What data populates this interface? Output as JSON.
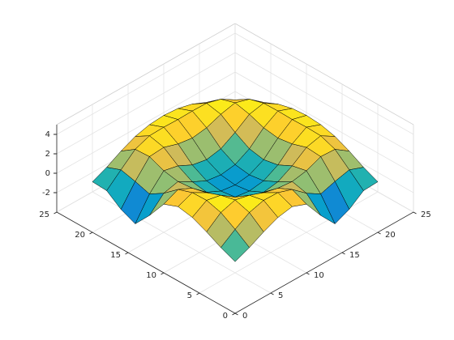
{
  "chart_data": {
    "type": "surface",
    "x": [
      1,
      3,
      5,
      7,
      9,
      11,
      13,
      15,
      17,
      19,
      21
    ],
    "y": [
      1,
      3,
      5,
      7,
      9,
      11,
      13,
      15,
      17,
      19,
      21
    ],
    "z": [
      [
        0.48,
        1.1,
        1.88,
        2.53,
        2.81,
        2.23,
        0.24,
        -1.46,
        -0.8,
        0.29,
        0.37
      ],
      [
        1.1,
        2.14,
        3.04,
        3.46,
        3.42,
        2.91,
        1.69,
        0.78,
        1.24,
        1.6,
        1.03
      ],
      [
        1.88,
        3.04,
        3.5,
        3.15,
        2.58,
        2.21,
        2.06,
        2.34,
        2.96,
        2.88,
        1.86
      ],
      [
        2.54,
        3.46,
        3.15,
        2.12,
        1.27,
        0.96,
        1.2,
        2.01,
        3.08,
        3.44,
        2.54
      ],
      [
        2.81,
        3.42,
        2.58,
        1.27,
        0.47,
        0.25,
        0.47,
        1.27,
        2.6,
        3.49,
        2.92
      ],
      [
        2.23,
        2.91,
        2.21,
        0.96,
        0.25,
        0.04,
        0.25,
        0.98,
        2.37,
        3.45,
        3.04
      ],
      [
        0.24,
        1.69,
        2.06,
        1.2,
        0.47,
        0.25,
        0.47,
        1.27,
        2.6,
        3.49,
        2.92
      ],
      [
        -1.46,
        0.78,
        2.34,
        2.01,
        1.27,
        0.98,
        1.27,
        2.12,
        3.15,
        3.46,
        2.54
      ],
      [
        -0.8,
        1.24,
        2.96,
        3.08,
        2.6,
        2.37,
        2.6,
        3.15,
        3.5,
        3.04,
        1.88
      ],
      [
        0.29,
        1.6,
        2.88,
        3.44,
        3.49,
        3.45,
        3.49,
        3.46,
        3.04,
        2.14,
        1.1
      ],
      [
        0.37,
        1.03,
        1.86,
        2.54,
        2.92,
        3.04,
        2.92,
        2.54,
        1.88,
        1.1,
        0.48
      ]
    ],
    "xlim": [
      0,
      25
    ],
    "ylim": [
      0,
      25
    ],
    "zlim": [
      -4,
      5
    ],
    "xticks": [
      0,
      5,
      10,
      15,
      20,
      25
    ],
    "yticks": [
      0,
      5,
      10,
      15,
      20,
      25
    ],
    "zticks": [
      -2,
      0,
      2,
      4
    ],
    "grid": true,
    "colormap": "parula",
    "edge_color": "#000000"
  }
}
